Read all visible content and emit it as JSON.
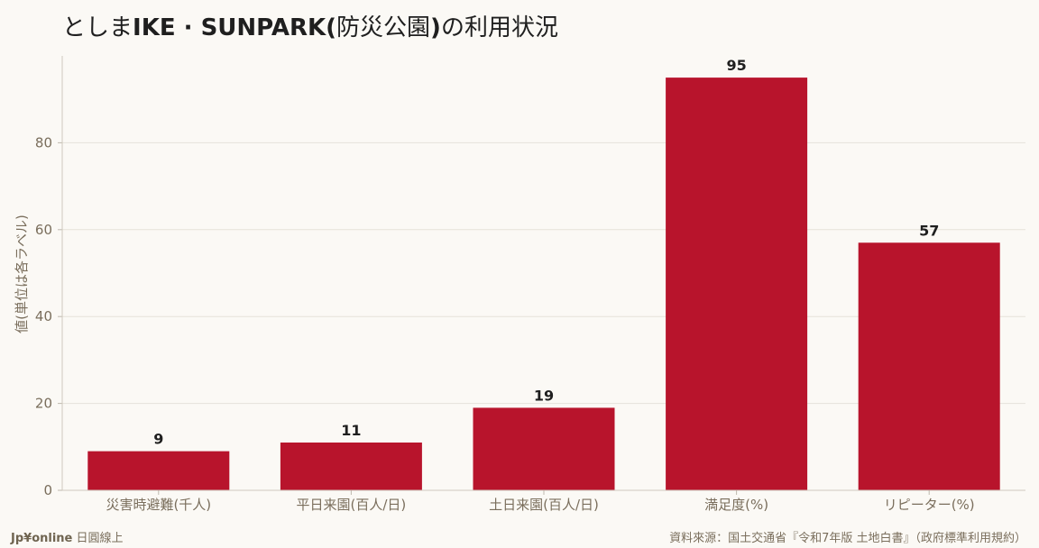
{
  "title": {
    "bold_part1": "IKE · SUNPARK(",
    "prefix": "としま",
    "middle": "防災公園",
    "bold_part2": ")",
    "suffix": "の利用状況"
  },
  "footer": {
    "brand": "Jp¥online",
    "brand_sub": " 日圓線上",
    "source": "資料來源：国土交通省『令和7年版 土地白書』（政府標準利用規約）"
  },
  "colors": {
    "bar": "#b8142c",
    "background": "#fbf9f5",
    "grid": "#e6e2da",
    "axis_text": "#7a6e5c"
  },
  "chart_data": {
    "type": "bar",
    "categories": [
      "災害時避難(千人)",
      "平日来園(百人/日)",
      "土日来園(百人/日)",
      "満足度(%)",
      "リピーター(%)"
    ],
    "values": [
      9,
      11,
      19,
      95,
      57
    ],
    "title": "としまIKE · SUNPARK(防災公園)の利用状況",
    "xlabel": "",
    "ylabel": "値(単位は各ラベル)",
    "ylim": [
      0,
      100
    ],
    "yticks": [
      0,
      20,
      40,
      60,
      80
    ],
    "grid": true,
    "legend": "none"
  }
}
